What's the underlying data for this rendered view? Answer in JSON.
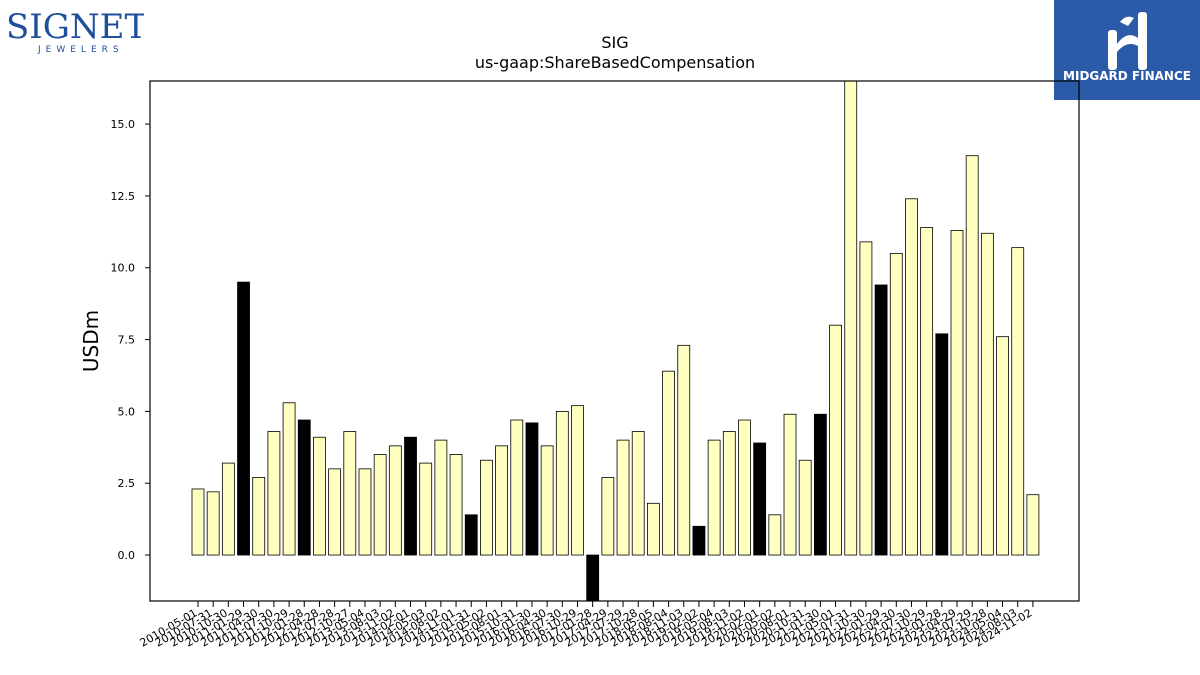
{
  "logos": {
    "left_main": "SIGNET",
    "left_sub": "JEWELERS",
    "right_name": "MIDGARD FINANCE"
  },
  "colors": {
    "bar_fill": "#ffffc0",
    "highlight_fill": "#000000",
    "logo_left": "#1f4e9c",
    "logo_right_bg": "#2b5aa8"
  },
  "chart_data": {
    "type": "bar",
    "title": "SIG",
    "subtitle": "us-gaap:ShareBasedCompensation",
    "xlabel": "",
    "ylabel": "USDm",
    "ylim": [
      -1.6,
      16.5
    ],
    "yticks": [
      "0.0",
      "2.5",
      "5.0",
      "7.5",
      "10.0",
      "12.5",
      "15.0"
    ],
    "grid": false,
    "categories": [
      "2010-05-01",
      "2010-07-31",
      "2010-10-30",
      "2011-01-29",
      "2011-04-30",
      "2011-07-30",
      "2011-10-29",
      "2012-01-28",
      "2012-04-28",
      "2012-07-28",
      "2012-10-27",
      "2013-05-04",
      "2013-08-03",
      "2013-11-02",
      "2014-02-01",
      "2014-05-03",
      "2014-08-02",
      "2014-11-01",
      "2015-01-31",
      "2015-05-02",
      "2015-08-01",
      "2015-10-31",
      "2016-01-30",
      "2016-04-30",
      "2016-07-30",
      "2016-10-29",
      "2017-01-28",
      "2017-04-29",
      "2017-07-29",
      "2017-10-28",
      "2018-05-05",
      "2018-08-04",
      "2018-11-03",
      "2019-02-02",
      "2019-05-04",
      "2019-08-03",
      "2019-11-02",
      "2020-02-01",
      "2020-05-02",
      "2020-08-01",
      "2020-10-31",
      "2021-01-30",
      "2021-05-01",
      "2021-07-31",
      "2021-10-30",
      "2022-01-29",
      "2022-04-30",
      "2022-07-30",
      "2022-10-29",
      "2023-01-28",
      "2023-04-29",
      "2023-07-29",
      "2023-10-28",
      "2024-05-04",
      "2024-08-03",
      "2024-11-02"
    ],
    "values": [
      2.3,
      2.2,
      3.2,
      9.5,
      2.7,
      4.3,
      5.3,
      4.7,
      4.1,
      3.0,
      4.3,
      3.0,
      3.5,
      3.8,
      4.1,
      3.2,
      4.0,
      3.5,
      1.4,
      3.3,
      3.8,
      4.7,
      4.6,
      3.8,
      5.0,
      5.2,
      -1.6,
      2.7,
      4.0,
      4.3,
      1.8,
      6.4,
      7.3,
      1.0,
      4.0,
      4.3,
      4.7,
      3.9,
      1.4,
      4.9,
      3.3,
      4.9,
      8.0,
      16.5,
      10.9,
      9.4,
      10.5,
      12.4,
      11.4,
      7.7,
      11.3,
      13.9,
      11.2,
      7.6,
      10.7,
      2.1
    ],
    "highlighted": [
      3,
      7,
      14,
      18,
      22,
      26,
      33,
      37,
      41,
      45,
      49
    ]
  }
}
